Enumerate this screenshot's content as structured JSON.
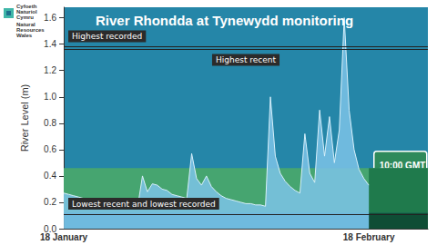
{
  "chart_data": {
    "type": "line",
    "title": "River Rhondda at Tynewydd monitoring",
    "ylabel": "River Level (m)",
    "logo_text": [
      "Cyfoeth",
      "Naturiol",
      "Cymru",
      "Natural",
      "Resources",
      "Wales"
    ],
    "annotation": "10:00 GMT",
    "categories": [
      "18 January",
      null,
      null,
      null,
      null,
      null,
      null,
      null,
      null,
      null,
      null,
      null,
      null,
      null,
      null,
      null,
      null,
      null,
      null,
      null,
      null,
      null,
      null,
      null,
      null,
      null,
      null,
      null,
      null,
      null,
      null,
      null,
      null,
      null,
      null,
      null,
      null,
      null,
      null,
      null,
      null,
      null,
      null,
      null,
      null,
      null,
      null,
      null,
      null,
      null,
      null,
      null,
      null,
      null,
      null,
      null,
      null,
      null,
      null,
      null,
      null,
      null,
      "18 February",
      null,
      null,
      null,
      null,
      null,
      null,
      null,
      null,
      null,
      null,
      null,
      null
    ],
    "values": [
      0.27,
      0.26,
      0.25,
      0.24,
      0.23,
      0.22,
      0.21,
      0.21,
      0.2,
      0.19,
      0.19,
      0.18,
      0.18,
      0.17,
      0.17,
      0.16,
      0.4,
      0.28,
      0.34,
      0.33,
      0.3,
      0.29,
      0.26,
      0.25,
      0.24,
      0.23,
      0.57,
      0.38,
      0.33,
      0.4,
      0.32,
      0.28,
      0.25,
      0.23,
      0.22,
      0.21,
      0.2,
      0.19,
      0.19,
      0.18,
      0.18,
      0.17,
      1.0,
      0.55,
      0.42,
      0.36,
      0.32,
      0.29,
      0.27,
      0.72,
      0.42,
      0.35,
      0.9,
      0.55,
      0.85,
      0.5,
      0.75,
      1.6,
      0.9,
      0.6,
      0.45,
      0.38,
      0.33,
      null,
      null,
      null,
      null,
      null,
      null,
      null,
      null,
      null,
      null,
      null,
      null
    ],
    "color": "#7cc3e8",
    "ylim": [
      0,
      1.68
    ],
    "yticks": [
      {
        "value": 0,
        "label": "0.0"
      },
      0.2,
      0.4,
      0.6,
      0.8,
      {
        "value": 1,
        "label": "1.0"
      },
      1.2,
      1.4,
      1.6
    ],
    "normal_range": [
      0.12,
      0.46
    ],
    "reference_lines": [
      {
        "label": "Highest recorded",
        "value": 1.38
      },
      {
        "label": "Highest recent",
        "value": 1.36
      },
      {
        "label": "Lowest recent and lowest recorded",
        "value": 0.11
      }
    ],
    "grid": false
  }
}
